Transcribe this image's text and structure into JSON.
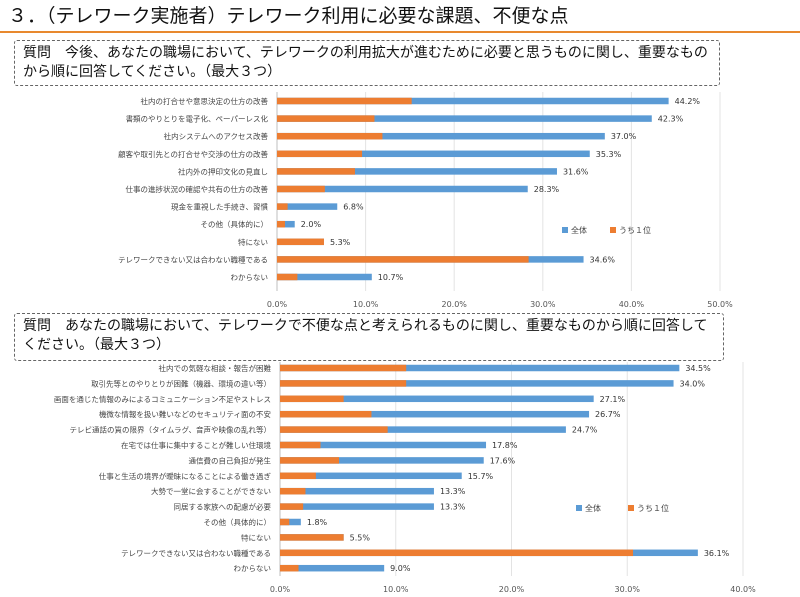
{
  "title": "３．（テレワーク実施者）テレワーク利用に必要な課題、不便な点",
  "colors": {
    "blue": "#5b9bd5",
    "orange": "#ed7d31",
    "accent": "#e8892e"
  },
  "question1": "質問　今後、あなたの職場において、テレワークの利用拡大が進むために必要と思うものに関し、重要なものから順に回答してください。（最大３つ）",
  "question2": "質問　あなたの職場において、テレワークで不便な点と考えられるものに関し、重要なものから順に回答してください。（最大３つ）",
  "chart_data": [
    {
      "type": "bar",
      "orientation": "horizontal",
      "categories": [
        "社内の打合せや意思決定の仕方の改善",
        "書類のやりとりを電子化、ペーパーレス化",
        "社内システムへのアクセス改善",
        "顧客や取引先との打合せや交渉の仕方の改善",
        "社内外の押印文化の見直し",
        "仕事の進捗状況の確認や共有の仕方の改善",
        "現金を重視した手続き、習慣",
        "その他（具体的に）",
        "特にない",
        "テレワークできない又は合わない職種である",
        "わからない"
      ],
      "series": [
        {
          "name": "全体",
          "values": [
            44.2,
            42.3,
            37.0,
            35.3,
            31.6,
            28.3,
            6.8,
            2.0,
            5.3,
            34.6,
            10.7
          ]
        },
        {
          "name": "うち１位",
          "values": [
            15.2,
            11.0,
            11.9,
            9.6,
            8.8,
            5.4,
            1.2,
            0.9,
            5.3,
            28.4,
            2.3
          ]
        }
      ],
      "value_labels": [
        "44.2%",
        "42.3%",
        "37.0%",
        "35.3%",
        "31.6%",
        "28.3%",
        "6.8%",
        "2.0%",
        "5.3%",
        "34.6%",
        "10.7%"
      ],
      "xlim": [
        0,
        50
      ],
      "ticks": [
        "0.0%",
        "10.0%",
        "20.0%",
        "30.0%",
        "40.0%",
        "50.0%"
      ],
      "legend_position": "right"
    },
    {
      "type": "bar",
      "orientation": "horizontal",
      "categories": [
        "社内での気軽な相談・報告が困難",
        "取引先等とのやりとりが困難（機器、環境の違い等）",
        "画面を通じた情報のみによるコミュニケーション不足やストレス",
        "機微な情報を扱い難いなどのセキュリティ面の不安",
        "テレビ通話の質の限界（タイムラグ、音声や映像の乱れ等）",
        "在宅では仕事に集中することが難しい住環境",
        "通信費の自己負担が発生",
        "仕事と生活の境界が曖昧になることによる働き過ぎ",
        "大勢で一堂に会することができない",
        "同居する家族への配慮が必要",
        "その他（具体的に）",
        "特にない",
        "テレワークできない又は合わない職種である",
        "わからない"
      ],
      "series": [
        {
          "name": "全体",
          "values": [
            34.5,
            34.0,
            27.1,
            26.7,
            24.7,
            17.8,
            17.6,
            15.7,
            13.3,
            13.3,
            1.8,
            5.5,
            36.1,
            9.0
          ]
        },
        {
          "name": "うち１位",
          "values": [
            10.9,
            10.9,
            5.5,
            7.9,
            9.3,
            3.5,
            5.1,
            3.1,
            2.2,
            2.0,
            0.8,
            5.5,
            30.5,
            1.6
          ]
        }
      ],
      "value_labels": [
        "34.5%",
        "34.0%",
        "27.1%",
        "26.7%",
        "24.7%",
        "17.8%",
        "17.6%",
        "15.7%",
        "13.3%",
        "13.3%",
        "1.8%",
        "5.5%",
        "36.1%",
        "9.0%"
      ],
      "xlim": [
        0,
        40
      ],
      "ticks": [
        "0.0%",
        "10.0%",
        "20.0%",
        "30.0%",
        "40.0%"
      ],
      "legend_position": "right"
    }
  ]
}
